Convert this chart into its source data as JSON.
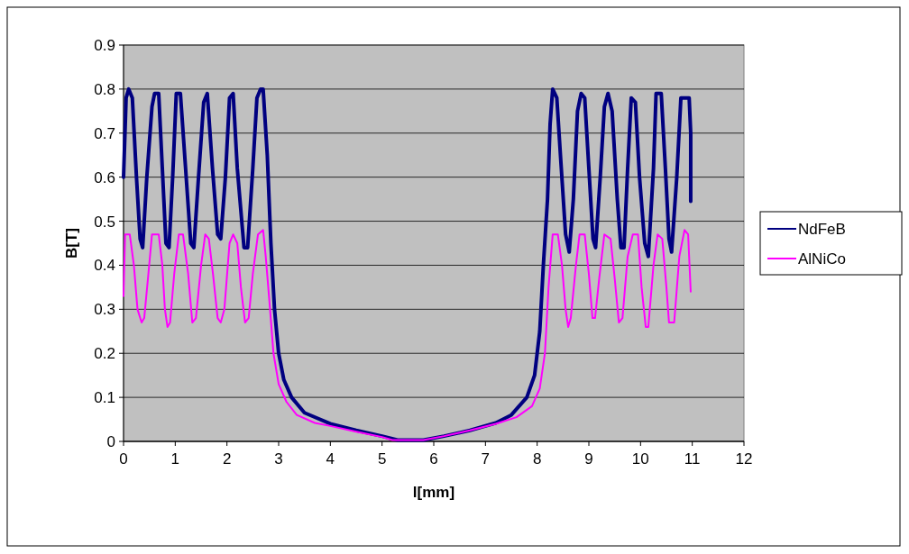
{
  "chart_data": {
    "type": "line",
    "xlabel": "l[mm]",
    "ylabel": "B[T]",
    "xlim": [
      0,
      12
    ],
    "xticks": [
      0,
      1,
      2,
      3,
      4,
      5,
      6,
      7,
      8,
      9,
      10,
      11,
      12
    ],
    "ylim": [
      0,
      0.9
    ],
    "yticks": [
      0,
      0.1,
      0.2,
      0.3,
      0.4,
      0.5,
      0.6,
      0.7,
      0.8,
      0.9
    ],
    "grid": "y",
    "legend": "right",
    "marker": "none",
    "line_style": "solid",
    "series": [
      {
        "name": "NdFeB",
        "color": "#000080",
        "x": [
          0,
          0.05,
          0.1,
          0.17,
          0.25,
          0.32,
          0.37,
          0.45,
          0.55,
          0.6,
          0.68,
          0.75,
          0.82,
          0.88,
          0.95,
          1.02,
          1.1,
          1.2,
          1.3,
          1.36,
          1.45,
          1.55,
          1.62,
          1.72,
          1.82,
          1.88,
          1.97,
          2.05,
          2.12,
          2.2,
          2.33,
          2.4,
          2.5,
          2.58,
          2.65,
          2.7,
          2.78,
          2.85,
          2.92,
          3.0,
          3.1,
          3.25,
          3.5,
          4,
          4.5,
          5,
          5.3,
          5.8,
          6.2,
          6.7,
          7.2,
          7.5,
          7.8,
          7.95,
          8.05,
          8.12,
          8.2,
          8.25,
          8.3,
          8.38,
          8.45,
          8.55,
          8.62,
          8.7,
          8.78,
          8.85,
          8.92,
          9.0,
          9.08,
          9.13,
          9.22,
          9.3,
          9.37,
          9.45,
          9.55,
          9.62,
          9.68,
          9.75,
          9.82,
          9.9,
          9.98,
          10.08,
          10.15,
          10.25,
          10.3,
          10.4,
          10.48,
          10.55,
          10.6,
          10.7,
          10.78,
          10.94,
          10.97,
          10.97
        ],
        "values": [
          0.6,
          0.78,
          0.8,
          0.78,
          0.6,
          0.46,
          0.44,
          0.6,
          0.76,
          0.79,
          0.79,
          0.62,
          0.45,
          0.44,
          0.6,
          0.79,
          0.79,
          0.62,
          0.45,
          0.44,
          0.6,
          0.77,
          0.79,
          0.62,
          0.47,
          0.46,
          0.6,
          0.78,
          0.79,
          0.62,
          0.44,
          0.44,
          0.62,
          0.78,
          0.8,
          0.8,
          0.65,
          0.45,
          0.3,
          0.2,
          0.14,
          0.1,
          0.065,
          0.04,
          0.025,
          0.012,
          0.003,
          0.003,
          0.012,
          0.025,
          0.042,
          0.06,
          0.1,
          0.15,
          0.25,
          0.4,
          0.55,
          0.72,
          0.8,
          0.78,
          0.65,
          0.47,
          0.43,
          0.55,
          0.75,
          0.79,
          0.78,
          0.62,
          0.46,
          0.44,
          0.6,
          0.76,
          0.79,
          0.75,
          0.55,
          0.44,
          0.44,
          0.62,
          0.78,
          0.77,
          0.6,
          0.45,
          0.42,
          0.62,
          0.79,
          0.79,
          0.62,
          0.46,
          0.43,
          0.6,
          0.78,
          0.78,
          0.7,
          0.545
        ]
      },
      {
        "name": "AlNiCo",
        "color": "#ff00ff",
        "x": [
          0,
          0.03,
          0.12,
          0.2,
          0.27,
          0.35,
          0.4,
          0.48,
          0.55,
          0.68,
          0.75,
          0.8,
          0.85,
          0.9,
          0.98,
          1.07,
          1.15,
          1.25,
          1.33,
          1.4,
          1.5,
          1.58,
          1.65,
          1.73,
          1.82,
          1.88,
          1.95,
          2.05,
          2.12,
          2.2,
          2.27,
          2.35,
          2.42,
          2.5,
          2.6,
          2.7,
          2.75,
          2.82,
          2.9,
          3.0,
          3.15,
          3.35,
          3.7,
          4,
          4.5,
          5,
          5.2,
          5.8,
          6.2,
          6.7,
          7.2,
          7.6,
          7.9,
          8.05,
          8.15,
          8.22,
          8.3,
          8.4,
          8.48,
          8.55,
          8.6,
          8.65,
          8.75,
          8.82,
          8.92,
          9.0,
          9.07,
          9.12,
          9.2,
          9.3,
          9.42,
          9.5,
          9.58,
          9.65,
          9.75,
          9.85,
          9.95,
          10.02,
          10.1,
          10.15,
          10.25,
          10.33,
          10.42,
          10.5,
          10.55,
          10.65,
          10.75,
          10.85,
          10.92,
          10.97
        ],
        "values": [
          0.33,
          0.47,
          0.47,
          0.4,
          0.3,
          0.27,
          0.28,
          0.38,
          0.47,
          0.47,
          0.4,
          0.3,
          0.26,
          0.27,
          0.38,
          0.47,
          0.47,
          0.38,
          0.27,
          0.28,
          0.4,
          0.47,
          0.46,
          0.38,
          0.28,
          0.27,
          0.3,
          0.45,
          0.47,
          0.45,
          0.35,
          0.27,
          0.28,
          0.38,
          0.47,
          0.48,
          0.42,
          0.32,
          0.2,
          0.13,
          0.09,
          0.06,
          0.042,
          0.035,
          0.022,
          0.01,
          0.003,
          0.003,
          0.012,
          0.025,
          0.04,
          0.055,
          0.08,
          0.12,
          0.2,
          0.35,
          0.47,
          0.47,
          0.4,
          0.3,
          0.26,
          0.28,
          0.4,
          0.47,
          0.47,
          0.38,
          0.28,
          0.28,
          0.37,
          0.47,
          0.46,
          0.37,
          0.27,
          0.28,
          0.42,
          0.47,
          0.47,
          0.35,
          0.26,
          0.26,
          0.4,
          0.47,
          0.46,
          0.35,
          0.27,
          0.27,
          0.42,
          0.48,
          0.47,
          0.34
        ]
      }
    ]
  }
}
